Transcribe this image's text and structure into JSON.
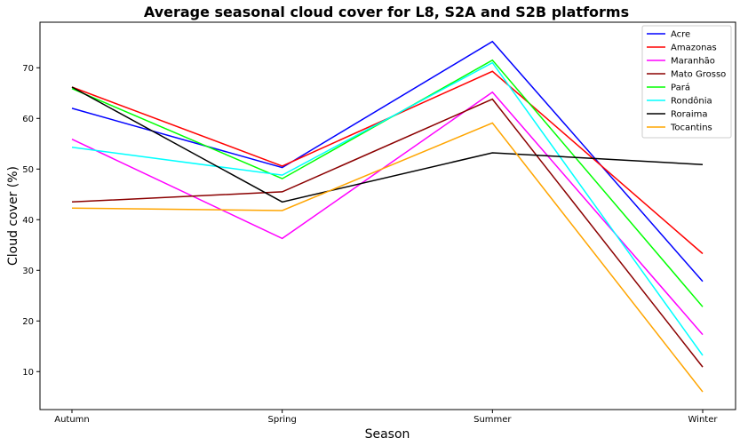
{
  "chart_data": {
    "type": "line",
    "title": "Average seasonal cloud cover for L8, S2A and S2B platforms",
    "xlabel": "Season",
    "ylabel": "Cloud cover (%)",
    "categories": [
      "Autumn",
      "Spring",
      "Summer",
      "Winter"
    ],
    "ylim": [
      2.5,
      79
    ],
    "yticks": [
      10,
      20,
      30,
      40,
      50,
      60,
      70
    ],
    "grid": false,
    "legend_position": "top-right",
    "series": [
      {
        "name": "Acre",
        "color": "#0000ff",
        "values": [
          62.0,
          50.3,
          75.2,
          27.8
        ]
      },
      {
        "name": "Amazonas",
        "color": "#ff0000",
        "values": [
          66.2,
          50.6,
          69.3,
          33.3
        ]
      },
      {
        "name": "Maranhão",
        "color": "#ff00ff",
        "values": [
          55.9,
          36.3,
          65.2,
          17.3
        ]
      },
      {
        "name": "Mato Grosso",
        "color": "#8b0000",
        "values": [
          43.5,
          45.5,
          63.8,
          10.9
        ]
      },
      {
        "name": "Pará",
        "color": "#00ff00",
        "values": [
          65.9,
          48.1,
          71.5,
          22.8
        ]
      },
      {
        "name": "Rondônia",
        "color": "#00ffff",
        "values": [
          54.3,
          48.8,
          71.0,
          13.2
        ]
      },
      {
        "name": "Roraima",
        "color": "#000000",
        "values": [
          66.2,
          43.5,
          53.2,
          50.9
        ]
      },
      {
        "name": "Tocantins",
        "color": "#ffa500",
        "values": [
          42.3,
          41.8,
          59.1,
          6.0
        ]
      }
    ]
  }
}
